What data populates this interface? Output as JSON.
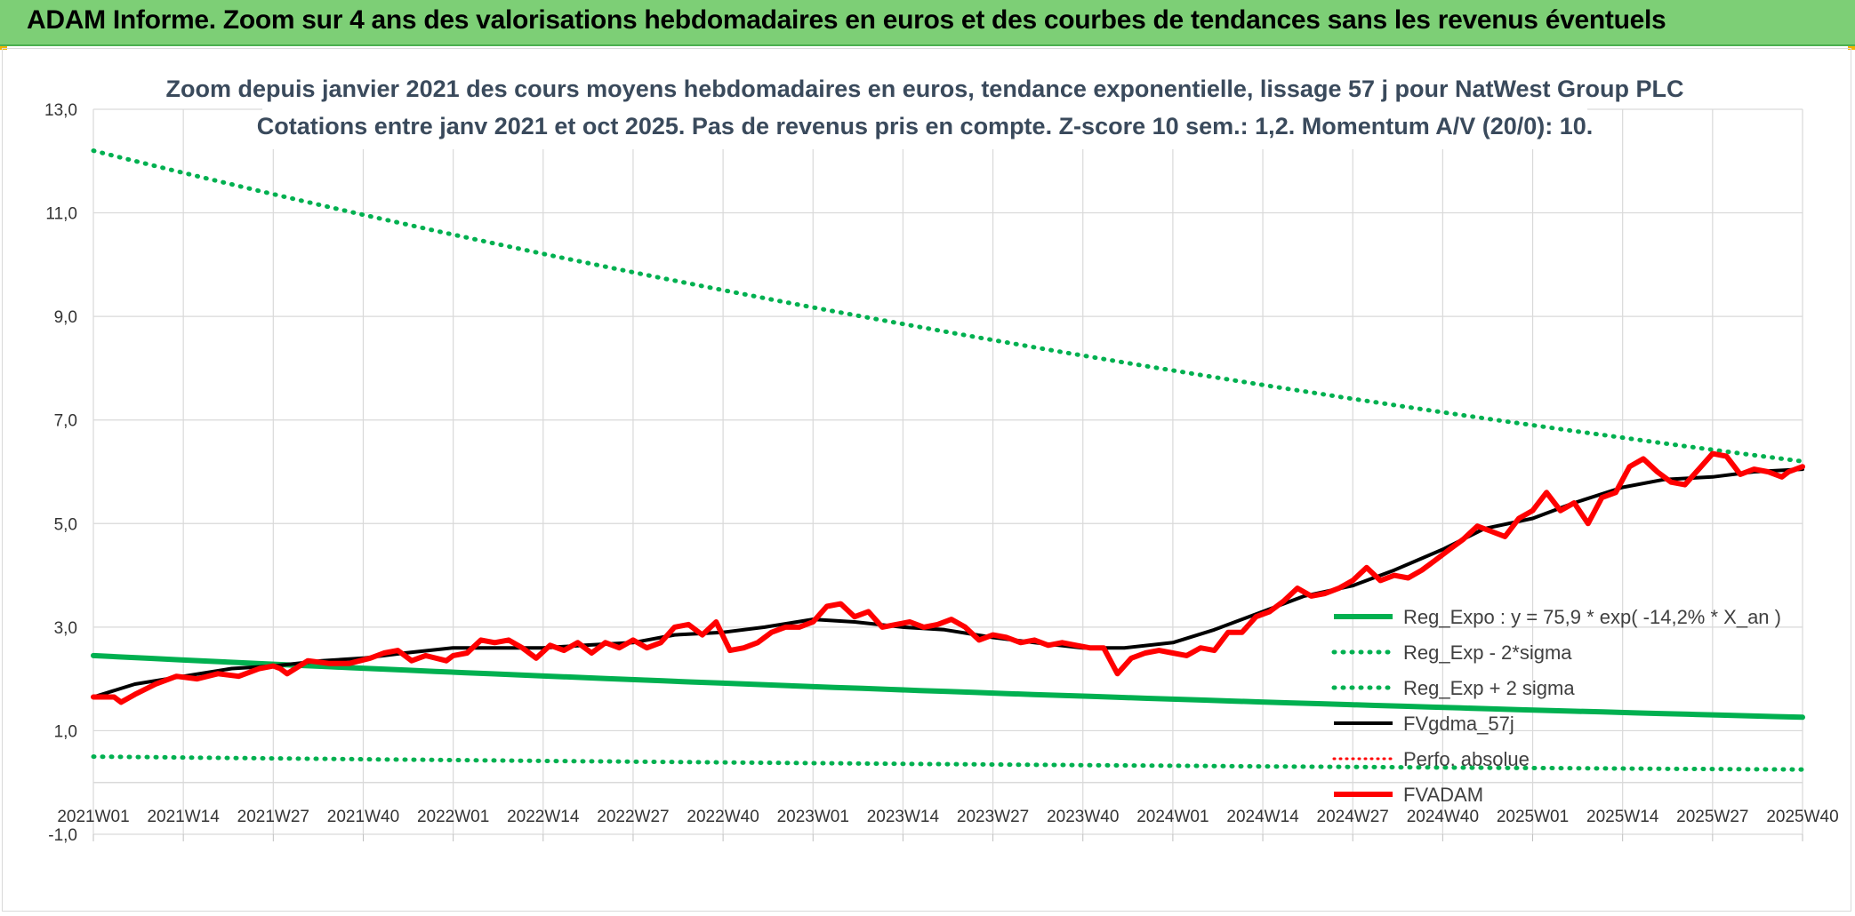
{
  "header": {
    "title": "ADAM Informe. Zoom sur 4 ans des valorisations hebdomadaires en euros et des courbes de tendances sans les revenus éventuels"
  },
  "colors": {
    "header_bg": "#7dcf76",
    "green": "#00b050",
    "black": "#000000",
    "red": "#ff0000"
  },
  "chart_data": {
    "type": "line",
    "title_lines": [
      "Zoom depuis janvier 2021 des cours moyens hebdomadaires en euros, tendance exponentielle, lissage 57 j pour NatWest Group PLC",
      "Cotations entre janv 2021 et oct 2025. Pas de revenus pris en compte. Z-score 10 sem.: 1,2. Momentum A/V (20/0): 10."
    ],
    "ylim": [
      -1.0,
      13.0
    ],
    "y_ticks": [
      "-1,0",
      "1,0",
      "3,0",
      "5,0",
      "7,0",
      "9,0",
      "11,0",
      "13,0"
    ],
    "x_tick_labels": [
      "2021W01",
      "2021W14",
      "2021W27",
      "2021W40",
      "2022W01",
      "2022W14",
      "2022W27",
      "2022W40",
      "2023W01",
      "2023W14",
      "2023W27",
      "2023W40",
      "2024W01",
      "2024W14",
      "2024W27",
      "2024W40",
      "2025W01",
      "2025W14",
      "2025W27",
      "2025W40"
    ],
    "legend": [
      {
        "label": "Reg_Expo : y = 75,9 * exp( -14,2% *  X_an )",
        "key": "reg"
      },
      {
        "label": "Reg_Exp - 2*sigma",
        "key": "low"
      },
      {
        "label": "Reg_Exp + 2 sigma",
        "key": "high"
      },
      {
        "label": "FVgdma_57j",
        "key": "ma"
      },
      {
        "label": "Perfo. absolue",
        "key": "perf"
      },
      {
        "label": "FVADAM",
        "key": "fv"
      }
    ],
    "series": [
      {
        "name": "Reg_Expo : y = 75,9 * exp( -14,2% *  X_an )",
        "key": "reg",
        "x": [
          0,
          247
        ],
        "values": [
          2.45,
          1.26
        ]
      },
      {
        "name": "Reg_Exp - 2*sigma",
        "key": "low",
        "x": [
          0,
          247
        ],
        "values": [
          0.5,
          0.25
        ]
      },
      {
        "name": "Reg_Exp + 2 sigma",
        "key": "high",
        "x": [
          0,
          247
        ],
        "values": [
          12.2,
          6.2
        ]
      },
      {
        "name": "FVgdma_57j",
        "key": "ma",
        "x": [
          0,
          6,
          13,
          20,
          26,
          33,
          39,
          45,
          52,
          58,
          65,
          71,
          78,
          84,
          91,
          97,
          104,
          110,
          117,
          123,
          130,
          136,
          143,
          149,
          156,
          162,
          169,
          175,
          182,
          188,
          195,
          201,
          208,
          214,
          221,
          227,
          234,
          240,
          247
        ],
        "values": [
          1.65,
          1.9,
          2.05,
          2.2,
          2.25,
          2.35,
          2.4,
          2.5,
          2.6,
          2.6,
          2.6,
          2.65,
          2.7,
          2.85,
          2.9,
          3.0,
          3.15,
          3.1,
          3.0,
          2.95,
          2.8,
          2.7,
          2.6,
          2.6,
          2.7,
          2.95,
          3.3,
          3.6,
          3.8,
          4.1,
          4.5,
          4.9,
          5.1,
          5.4,
          5.7,
          5.85,
          5.9,
          6.0,
          6.05
        ]
      },
      {
        "name": "FVADAM",
        "key": "fv",
        "x": [
          0,
          3,
          4,
          6,
          9,
          12,
          15,
          18,
          21,
          24,
          26,
          27,
          28,
          31,
          34,
          37,
          40,
          42,
          44,
          46,
          48,
          51,
          52,
          54,
          56,
          58,
          60,
          62,
          64,
          66,
          68,
          70,
          72,
          74,
          76,
          78,
          80,
          82,
          84,
          86,
          88,
          90,
          92,
          94,
          96,
          98,
          100,
          102,
          104,
          106,
          108,
          110,
          112,
          114,
          116,
          118,
          120,
          122,
          124,
          126,
          128,
          130,
          132,
          134,
          136,
          138,
          140,
          142,
          144,
          146,
          148,
          150,
          152,
          154,
          156,
          158,
          160,
          162,
          164,
          166,
          168,
          170,
          172,
          174,
          176,
          178,
          180,
          182,
          184,
          186,
          188,
          190,
          192,
          194,
          196,
          198,
          200,
          202,
          204,
          206,
          208,
          210,
          212,
          214,
          216,
          218,
          220,
          222,
          224,
          226,
          228,
          230,
          232,
          234,
          236,
          238,
          240,
          242,
          244,
          245,
          247
        ],
        "values": [
          1.65,
          1.65,
          1.55,
          1.7,
          1.9,
          2.05,
          2.0,
          2.1,
          2.05,
          2.2,
          2.25,
          2.2,
          2.1,
          2.35,
          2.3,
          2.3,
          2.4,
          2.5,
          2.55,
          2.35,
          2.45,
          2.35,
          2.45,
          2.5,
          2.75,
          2.7,
          2.75,
          2.6,
          2.4,
          2.65,
          2.55,
          2.7,
          2.5,
          2.7,
          2.6,
          2.75,
          2.6,
          2.7,
          3.0,
          3.05,
          2.85,
          3.1,
          2.55,
          2.6,
          2.7,
          2.9,
          3.0,
          3.0,
          3.1,
          3.4,
          3.45,
          3.2,
          3.3,
          3.0,
          3.05,
          3.1,
          3.0,
          3.05,
          3.15,
          3.0,
          2.75,
          2.85,
          2.8,
          2.7,
          2.75,
          2.65,
          2.7,
          2.65,
          2.6,
          2.6,
          2.1,
          2.4,
          2.5,
          2.55,
          2.5,
          2.45,
          2.6,
          2.55,
          2.9,
          2.9,
          3.2,
          3.3,
          3.5,
          3.75,
          3.6,
          3.65,
          3.75,
          3.9,
          4.15,
          3.9,
          4.0,
          3.95,
          4.1,
          4.3,
          4.5,
          4.7,
          4.95,
          4.85,
          4.75,
          5.1,
          5.25,
          5.6,
          5.25,
          5.4,
          5.0,
          5.5,
          5.6,
          6.1,
          6.25,
          6.0,
          5.8,
          5.75,
          6.05,
          6.35,
          6.3,
          5.95,
          6.05,
          6.0,
          5.9,
          6.0,
          6.1
        ]
      }
    ]
  }
}
